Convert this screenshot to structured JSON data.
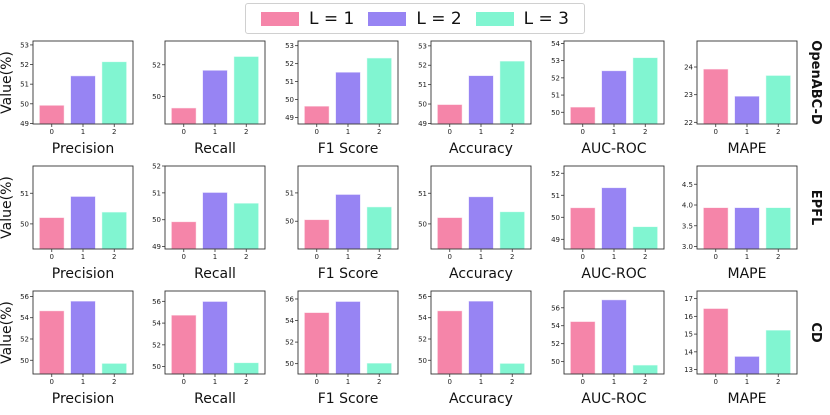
{
  "legend": [
    {
      "label": "L = 1",
      "color": "#f585a9"
    },
    {
      "label": "L = 2",
      "color": "#9784f3"
    },
    {
      "label": "L = 3",
      "color": "#81f5d1"
    }
  ],
  "ylabel": "Value(%)",
  "chart_data": [
    {
      "type": "bar",
      "row": "OpenABC-D",
      "categories": [
        "0",
        "1",
        "2"
      ],
      "panels": [
        {
          "title": "Precision",
          "values": [
            49.93,
            51.43,
            52.15
          ],
          "ylim": [
            48.97,
            53.2
          ],
          "yticks": [
            "49",
            "50",
            "51",
            "52",
            "53"
          ]
        },
        {
          "title": "Recall",
          "values": [
            49.28,
            51.66,
            52.53
          ],
          "ylim": [
            48.26,
            53.5
          ],
          "yticks": [
            "50",
            "52"
          ]
        },
        {
          "title": "F1 Score",
          "values": [
            49.64,
            51.53,
            52.32
          ],
          "ylim": [
            48.64,
            53.26
          ],
          "yticks": [
            "49",
            "50",
            "51",
            "52",
            "53"
          ]
        },
        {
          "title": "Accuracy",
          "values": [
            49.98,
            51.47,
            52.22
          ],
          "ylim": [
            48.97,
            53.25
          ],
          "yticks": [
            "49",
            "50",
            "51",
            "52",
            "53"
          ]
        },
        {
          "title": "AUC-ROC",
          "values": [
            50.31,
            52.42,
            53.18
          ],
          "ylim": [
            49.32,
            54.14
          ],
          "yticks": [
            "50",
            "51",
            "52",
            "53",
            "54"
          ]
        },
        {
          "title": "MAPE",
          "values": [
            23.93,
            22.95,
            23.7
          ],
          "ylim": [
            21.94,
            24.94
          ],
          "yticks": [
            "22",
            "23",
            "24"
          ]
        }
      ]
    },
    {
      "type": "bar",
      "row": "EPFL",
      "categories": [
        "0",
        "1",
        "2"
      ],
      "panels": [
        {
          "title": "Precision",
          "values": [
            50.21,
            50.9,
            50.39
          ],
          "ylim": [
            49.18,
            51.89
          ],
          "yticks": [
            "50",
            "51"
          ]
        },
        {
          "title": "Recall",
          "values": [
            49.93,
            51.02,
            50.62
          ],
          "ylim": [
            48.91,
            52.0
          ],
          "yticks": [
            "49",
            "50",
            "51",
            "52"
          ]
        },
        {
          "title": "F1 Score",
          "values": [
            50.06,
            50.95,
            50.51
          ],
          "ylim": [
            49.02,
            51.95
          ],
          "yticks": [
            "50",
            "51"
          ]
        },
        {
          "title": "Accuracy",
          "values": [
            50.21,
            50.89,
            50.4
          ],
          "ylim": [
            49.18,
            51.89
          ],
          "yticks": [
            "50",
            "51"
          ]
        },
        {
          "title": "AUC-ROC",
          "values": [
            50.44,
            51.35,
            49.58
          ],
          "ylim": [
            48.56,
            52.33
          ],
          "yticks": [
            "49",
            "50",
            "51",
            "52"
          ]
        },
        {
          "title": "MAPE",
          "values": [
            3.94,
            3.94,
            3.94
          ],
          "ylim": [
            2.94,
            4.94
          ],
          "yticks": [
            "3.0",
            "3.5",
            "4.0",
            "4.5"
          ]
        }
      ]
    },
    {
      "type": "bar",
      "row": "CD",
      "categories": [
        "0",
        "1",
        "2"
      ],
      "panels": [
        {
          "title": "Precision",
          "values": [
            54.66,
            55.57,
            49.72
          ],
          "ylim": [
            48.71,
            56.51
          ],
          "yticks": [
            "50",
            "52",
            "54",
            "56"
          ]
        },
        {
          "title": "Recall",
          "values": [
            54.74,
            56.0,
            50.37
          ],
          "ylim": [
            49.32,
            56.95
          ],
          "yticks": [
            "50",
            "52",
            "54",
            "56"
          ]
        },
        {
          "title": "F1 Score",
          "values": [
            54.75,
            55.78,
            50.06
          ],
          "ylim": [
            49.04,
            56.74
          ],
          "yticks": [
            "50",
            "52",
            "54",
            "56"
          ]
        },
        {
          "title": "Accuracy",
          "values": [
            54.66,
            55.57,
            49.72
          ],
          "ylim": [
            48.71,
            56.51
          ],
          "yticks": [
            "50",
            "52",
            "54",
            "56"
          ]
        },
        {
          "title": "AUC-ROC",
          "values": [
            54.48,
            56.9,
            49.63
          ],
          "ylim": [
            48.62,
            57.87
          ],
          "yticks": [
            "50",
            "52",
            "54",
            "56"
          ]
        },
        {
          "title": "MAPE",
          "values": [
            16.45,
            13.75,
            15.23
          ],
          "ylim": [
            12.75,
            17.43
          ],
          "yticks": [
            "13",
            "14",
            "15",
            "16",
            "17"
          ]
        }
      ]
    }
  ]
}
